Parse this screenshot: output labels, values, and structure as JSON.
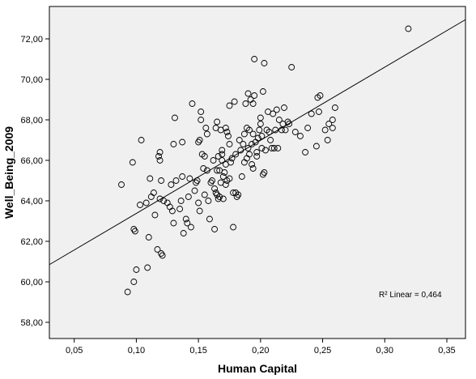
{
  "chart_data": {
    "type": "scatter",
    "title": "",
    "xlabel": "Human Capital",
    "ylabel": "Well_Being_2009",
    "xlim": [
      0.03,
      0.365
    ],
    "ylim": [
      57.2,
      73.6
    ],
    "x_ticks": [
      0.05,
      0.1,
      0.15,
      0.2,
      0.25,
      0.3,
      0.35
    ],
    "x_tick_labels": [
      "0,05",
      "0,10",
      "0,15",
      "0,20",
      "0,25",
      "0,30",
      "0,35"
    ],
    "y_ticks": [
      58,
      60,
      62,
      64,
      66,
      68,
      70,
      72
    ],
    "y_tick_labels": [
      "58,00",
      "60,00",
      "62,00",
      "64,00",
      "66,00",
      "68,00",
      "70,00",
      "72,00"
    ],
    "grid": false,
    "legend": "none",
    "annotation": "R² Linear = 0,464",
    "fit_line": {
      "type": "linear",
      "x": [
        0.03,
        0.365
      ],
      "y": [
        60.85,
        72.95
      ]
    },
    "points": [
      [
        0.088,
        64.8
      ],
      [
        0.093,
        59.5
      ],
      [
        0.097,
        65.9
      ],
      [
        0.098,
        62.6
      ],
      [
        0.099,
        62.5
      ],
      [
        0.098,
        60.0
      ],
      [
        0.1,
        60.6
      ],
      [
        0.103,
        63.8
      ],
      [
        0.104,
        67.0
      ],
      [
        0.108,
        63.9
      ],
      [
        0.109,
        60.7
      ],
      [
        0.11,
        62.2
      ],
      [
        0.111,
        65.1
      ],
      [
        0.112,
        64.2
      ],
      [
        0.114,
        64.4
      ],
      [
        0.115,
        63.3
      ],
      [
        0.117,
        61.6
      ],
      [
        0.118,
        66.2
      ],
      [
        0.119,
        66.4
      ],
      [
        0.119,
        66.0
      ],
      [
        0.119,
        64.1
      ],
      [
        0.12,
        61.4
      ],
      [
        0.121,
        61.3
      ],
      [
        0.12,
        65.0
      ],
      [
        0.122,
        64.0
      ],
      [
        0.125,
        63.9
      ],
      [
        0.127,
        63.7
      ],
      [
        0.128,
        64.8
      ],
      [
        0.129,
        63.5
      ],
      [
        0.13,
        62.9
      ],
      [
        0.13,
        66.8
      ],
      [
        0.131,
        68.1
      ],
      [
        0.132,
        65.0
      ],
      [
        0.135,
        63.6
      ],
      [
        0.136,
        64.0
      ],
      [
        0.137,
        66.9
      ],
      [
        0.137,
        65.2
      ],
      [
        0.138,
        62.4
      ],
      [
        0.14,
        63.1
      ],
      [
        0.141,
        62.9
      ],
      [
        0.142,
        64.2
      ],
      [
        0.143,
        65.1
      ],
      [
        0.144,
        62.7
      ],
      [
        0.145,
        68.8
      ],
      [
        0.147,
        64.5
      ],
      [
        0.148,
        64.9
      ],
      [
        0.149,
        65.0
      ],
      [
        0.15,
        63.9
      ],
      [
        0.15,
        66.9
      ],
      [
        0.151,
        67.0
      ],
      [
        0.151,
        63.5
      ],
      [
        0.152,
        68.0
      ],
      [
        0.152,
        68.4
      ],
      [
        0.153,
        66.3
      ],
      [
        0.154,
        65.6
      ],
      [
        0.155,
        66.2
      ],
      [
        0.155,
        64.3
      ],
      [
        0.156,
        67.6
      ],
      [
        0.157,
        65.5
      ],
      [
        0.157,
        67.3
      ],
      [
        0.158,
        64.0
      ],
      [
        0.159,
        63.1
      ],
      [
        0.16,
        64.9
      ],
      [
        0.161,
        65.0
      ],
      [
        0.162,
        66.0
      ],
      [
        0.163,
        62.6
      ],
      [
        0.163,
        64.6
      ],
      [
        0.164,
        67.6
      ],
      [
        0.164,
        64.4
      ],
      [
        0.165,
        65.5
      ],
      [
        0.165,
        64.3
      ],
      [
        0.165,
        67.9
      ],
      [
        0.166,
        66.2
      ],
      [
        0.166,
        64.1
      ],
      [
        0.167,
        64.2
      ],
      [
        0.167,
        65.5
      ],
      [
        0.168,
        64.9
      ],
      [
        0.168,
        67.5
      ],
      [
        0.169,
        66.3
      ],
      [
        0.169,
        66.0
      ],
      [
        0.169,
        66.5
      ],
      [
        0.17,
        65.2
      ],
      [
        0.17,
        64.1
      ],
      [
        0.171,
        65.4
      ],
      [
        0.172,
        67.6
      ],
      [
        0.172,
        65.8
      ],
      [
        0.172,
        64.8
      ],
      [
        0.173,
        67.4
      ],
      [
        0.173,
        65.0
      ],
      [
        0.174,
        67.2
      ],
      [
        0.175,
        66.8
      ],
      [
        0.175,
        65.1
      ],
      [
        0.175,
        68.7
      ],
      [
        0.176,
        65.9
      ],
      [
        0.177,
        66.1
      ],
      [
        0.178,
        62.7
      ],
      [
        0.178,
        64.4
      ],
      [
        0.179,
        68.9
      ],
      [
        0.18,
        66.3
      ],
      [
        0.18,
        64.4
      ],
      [
        0.181,
        64.2
      ],
      [
        0.182,
        64.3
      ],
      [
        0.183,
        67.0
      ],
      [
        0.184,
        66.5
      ],
      [
        0.185,
        65.2
      ],
      [
        0.186,
        66.8
      ],
      [
        0.187,
        65.9
      ],
      [
        0.187,
        67.3
      ],
      [
        0.188,
        68.8
      ],
      [
        0.189,
        66.1
      ],
      [
        0.189,
        67.6
      ],
      [
        0.19,
        69.3
      ],
      [
        0.19,
        66.6
      ],
      [
        0.191,
        66.3
      ],
      [
        0.191,
        67.5
      ],
      [
        0.192,
        69.0
      ],
      [
        0.193,
        65.8
      ],
      [
        0.193,
        66.8
      ],
      [
        0.194,
        67.3
      ],
      [
        0.194,
        68.8
      ],
      [
        0.194,
        65.6
      ],
      [
        0.195,
        71.0
      ],
      [
        0.195,
        69.2
      ],
      [
        0.196,
        66.9
      ],
      [
        0.197,
        66.4
      ],
      [
        0.197,
        66.2
      ],
      [
        0.198,
        67.1
      ],
      [
        0.199,
        67.5
      ],
      [
        0.2,
        67.8
      ],
      [
        0.2,
        68.1
      ],
      [
        0.201,
        67.2
      ],
      [
        0.201,
        66.6
      ],
      [
        0.202,
        69.4
      ],
      [
        0.202,
        65.3
      ],
      [
        0.203,
        70.8
      ],
      [
        0.203,
        65.4
      ],
      [
        0.204,
        66.5
      ],
      [
        0.205,
        67.5
      ],
      [
        0.206,
        68.4
      ],
      [
        0.207,
        67.4
      ],
      [
        0.208,
        67.0
      ],
      [
        0.209,
        66.6
      ],
      [
        0.21,
        68.3
      ],
      [
        0.211,
        66.6
      ],
      [
        0.212,
        67.5
      ],
      [
        0.213,
        68.5
      ],
      [
        0.214,
        66.6
      ],
      [
        0.215,
        68.0
      ],
      [
        0.217,
        67.5
      ],
      [
        0.218,
        67.8
      ],
      [
        0.219,
        68.6
      ],
      [
        0.22,
        67.5
      ],
      [
        0.222,
        67.9
      ],
      [
        0.223,
        67.8
      ],
      [
        0.225,
        70.6
      ],
      [
        0.228,
        67.4
      ],
      [
        0.232,
        67.2
      ],
      [
        0.236,
        66.4
      ],
      [
        0.238,
        67.6
      ],
      [
        0.241,
        68.3
      ],
      [
        0.245,
        66.7
      ],
      [
        0.246,
        69.1
      ],
      [
        0.247,
        68.4
      ],
      [
        0.248,
        69.2
      ],
      [
        0.252,
        67.5
      ],
      [
        0.254,
        67.0
      ],
      [
        0.255,
        67.8
      ],
      [
        0.258,
        68.0
      ],
      [
        0.258,
        67.6
      ],
      [
        0.26,
        68.6
      ],
      [
        0.319,
        72.5
      ]
    ]
  }
}
